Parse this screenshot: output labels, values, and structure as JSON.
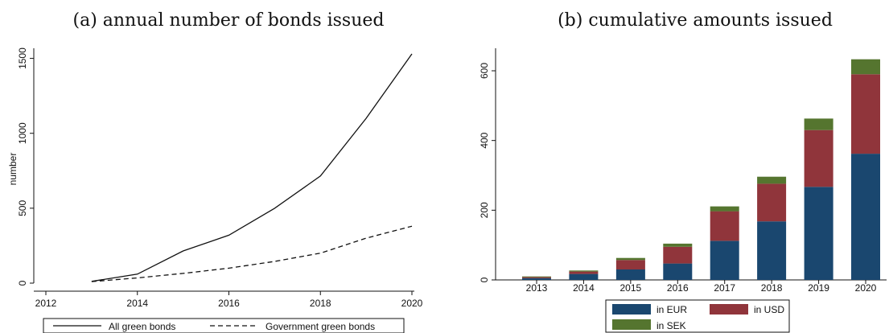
{
  "chart_data": [
    {
      "type": "line",
      "title": "(a) annual number of bonds issued",
      "xlabel": "",
      "ylabel": "number",
      "xlim": [
        2012,
        2020
      ],
      "ylim": [
        0,
        1600
      ],
      "xticks": [
        "2012",
        "2014",
        "2016",
        "2018",
        "2020"
      ],
      "yticks": [
        "0",
        "500",
        "1000",
        "1500"
      ],
      "grid": false,
      "legend_position": "bottom",
      "x": [
        2013,
        2014,
        2015,
        2016,
        2017,
        2018,
        2019,
        2020
      ],
      "series": [
        {
          "name": "All green bonds",
          "style": "solid",
          "values": [
            12,
            60,
            215,
            320,
            500,
            715,
            1100,
            1530
          ]
        },
        {
          "name": "Government green bonds",
          "style": "dashed",
          "values": [
            10,
            35,
            65,
            100,
            145,
            200,
            300,
            380
          ]
        }
      ]
    },
    {
      "type": "bar",
      "stacked": true,
      "title": "(b) cumulative amounts issued",
      "xlabel": "",
      "ylabel": "",
      "ylim": [
        0,
        660
      ],
      "yticks": [
        "0",
        "200",
        "400",
        "600"
      ],
      "grid": false,
      "legend_position": "bottom",
      "categories": [
        "2013",
        "2014",
        "2015",
        "2016",
        "2017",
        "2018",
        "2019",
        "2020"
      ],
      "series": [
        {
          "name": "in EUR",
          "color": "#1a476f",
          "values": [
            5,
            17,
            30,
            47,
            112,
            168,
            267,
            362
          ]
        },
        {
          "name": "in USD",
          "color": "#90353b",
          "values": [
            3,
            7,
            27,
            48,
            85,
            108,
            163,
            228
          ]
        },
        {
          "name": "in SEK",
          "color": "#55752f",
          "values": [
            2,
            3,
            6,
            9,
            14,
            20,
            33,
            43
          ]
        }
      ]
    }
  ]
}
